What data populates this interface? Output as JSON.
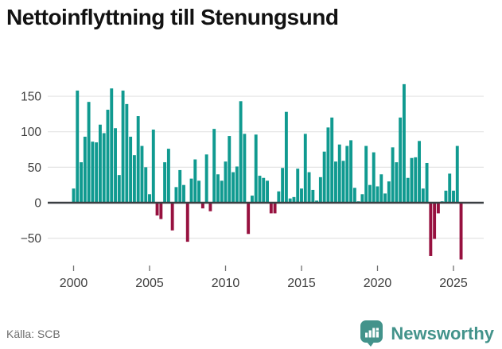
{
  "header": {
    "title": "Nettoinflyttning till Stenungsund"
  },
  "footer": {
    "source": "Källa: SCB"
  },
  "branding": {
    "name": "Newsworthy",
    "brand_color": "#43938b"
  },
  "colors": {
    "positive_bar": "#109a90",
    "negative_bar": "#97113f",
    "zero_axis": "#3a3f42",
    "gridline": "#e4e4e4",
    "tick_label": "#3f3f3f",
    "tick_mark": "#6f7070"
  },
  "chart_data": {
    "type": "bar",
    "title": "Nettoinflyttning till Stenungsund",
    "xlabel": "",
    "ylabel": "",
    "frequency": "quarterly",
    "start": "2000-Q1",
    "end": "2025-Q3",
    "grid": true,
    "ylim": [
      -95,
      180
    ],
    "y_ticks": [
      150,
      100,
      50,
      0,
      -50
    ],
    "y_tick_labels": [
      "150",
      "100",
      "50",
      "0",
      "−50"
    ],
    "x_tick_labels": [
      "2000",
      "2005",
      "2010",
      "2015",
      "2020",
      "2025"
    ],
    "values_by_year": {
      "2000": [
        20,
        158,
        57,
        93
      ],
      "2001": [
        142,
        86,
        85,
        110
      ],
      "2002": [
        98,
        131,
        161,
        105
      ],
      "2003": [
        39,
        158,
        139,
        93
      ],
      "2004": [
        67,
        122,
        80,
        50
      ],
      "2005": [
        12,
        103,
        -18,
        -23
      ],
      "2006": [
        57,
        76,
        -39,
        22
      ],
      "2007": [
        46,
        25,
        -55,
        34
      ],
      "2008": [
        61,
        31,
        -8,
        68
      ],
      "2009": [
        -12,
        104,
        40,
        31
      ],
      "2010": [
        58,
        94,
        43,
        51
      ],
      "2011": [
        143,
        97,
        -44,
        10
      ],
      "2012": [
        96,
        38,
        35,
        31
      ],
      "2013": [
        -15,
        -15,
        16,
        49
      ],
      "2014": [
        128,
        6,
        8,
        48
      ],
      "2015": [
        20,
        97,
        43,
        18
      ],
      "2016": [
        3,
        36,
        72,
        106
      ],
      "2017": [
        120,
        58,
        82,
        59
      ],
      "2018": [
        80,
        88,
        21,
        2
      ],
      "2019": [
        12,
        80,
        25,
        71
      ],
      "2020": [
        23,
        40,
        13,
        30
      ],
      "2021": [
        78,
        57,
        120,
        167
      ],
      "2022": [
        35,
        63,
        64,
        87
      ],
      "2023": [
        20,
        56,
        -75,
        -51
      ],
      "2024": [
        -15,
        2,
        17,
        41
      ],
      "2025": [
        17,
        80,
        -80
      ]
    }
  }
}
